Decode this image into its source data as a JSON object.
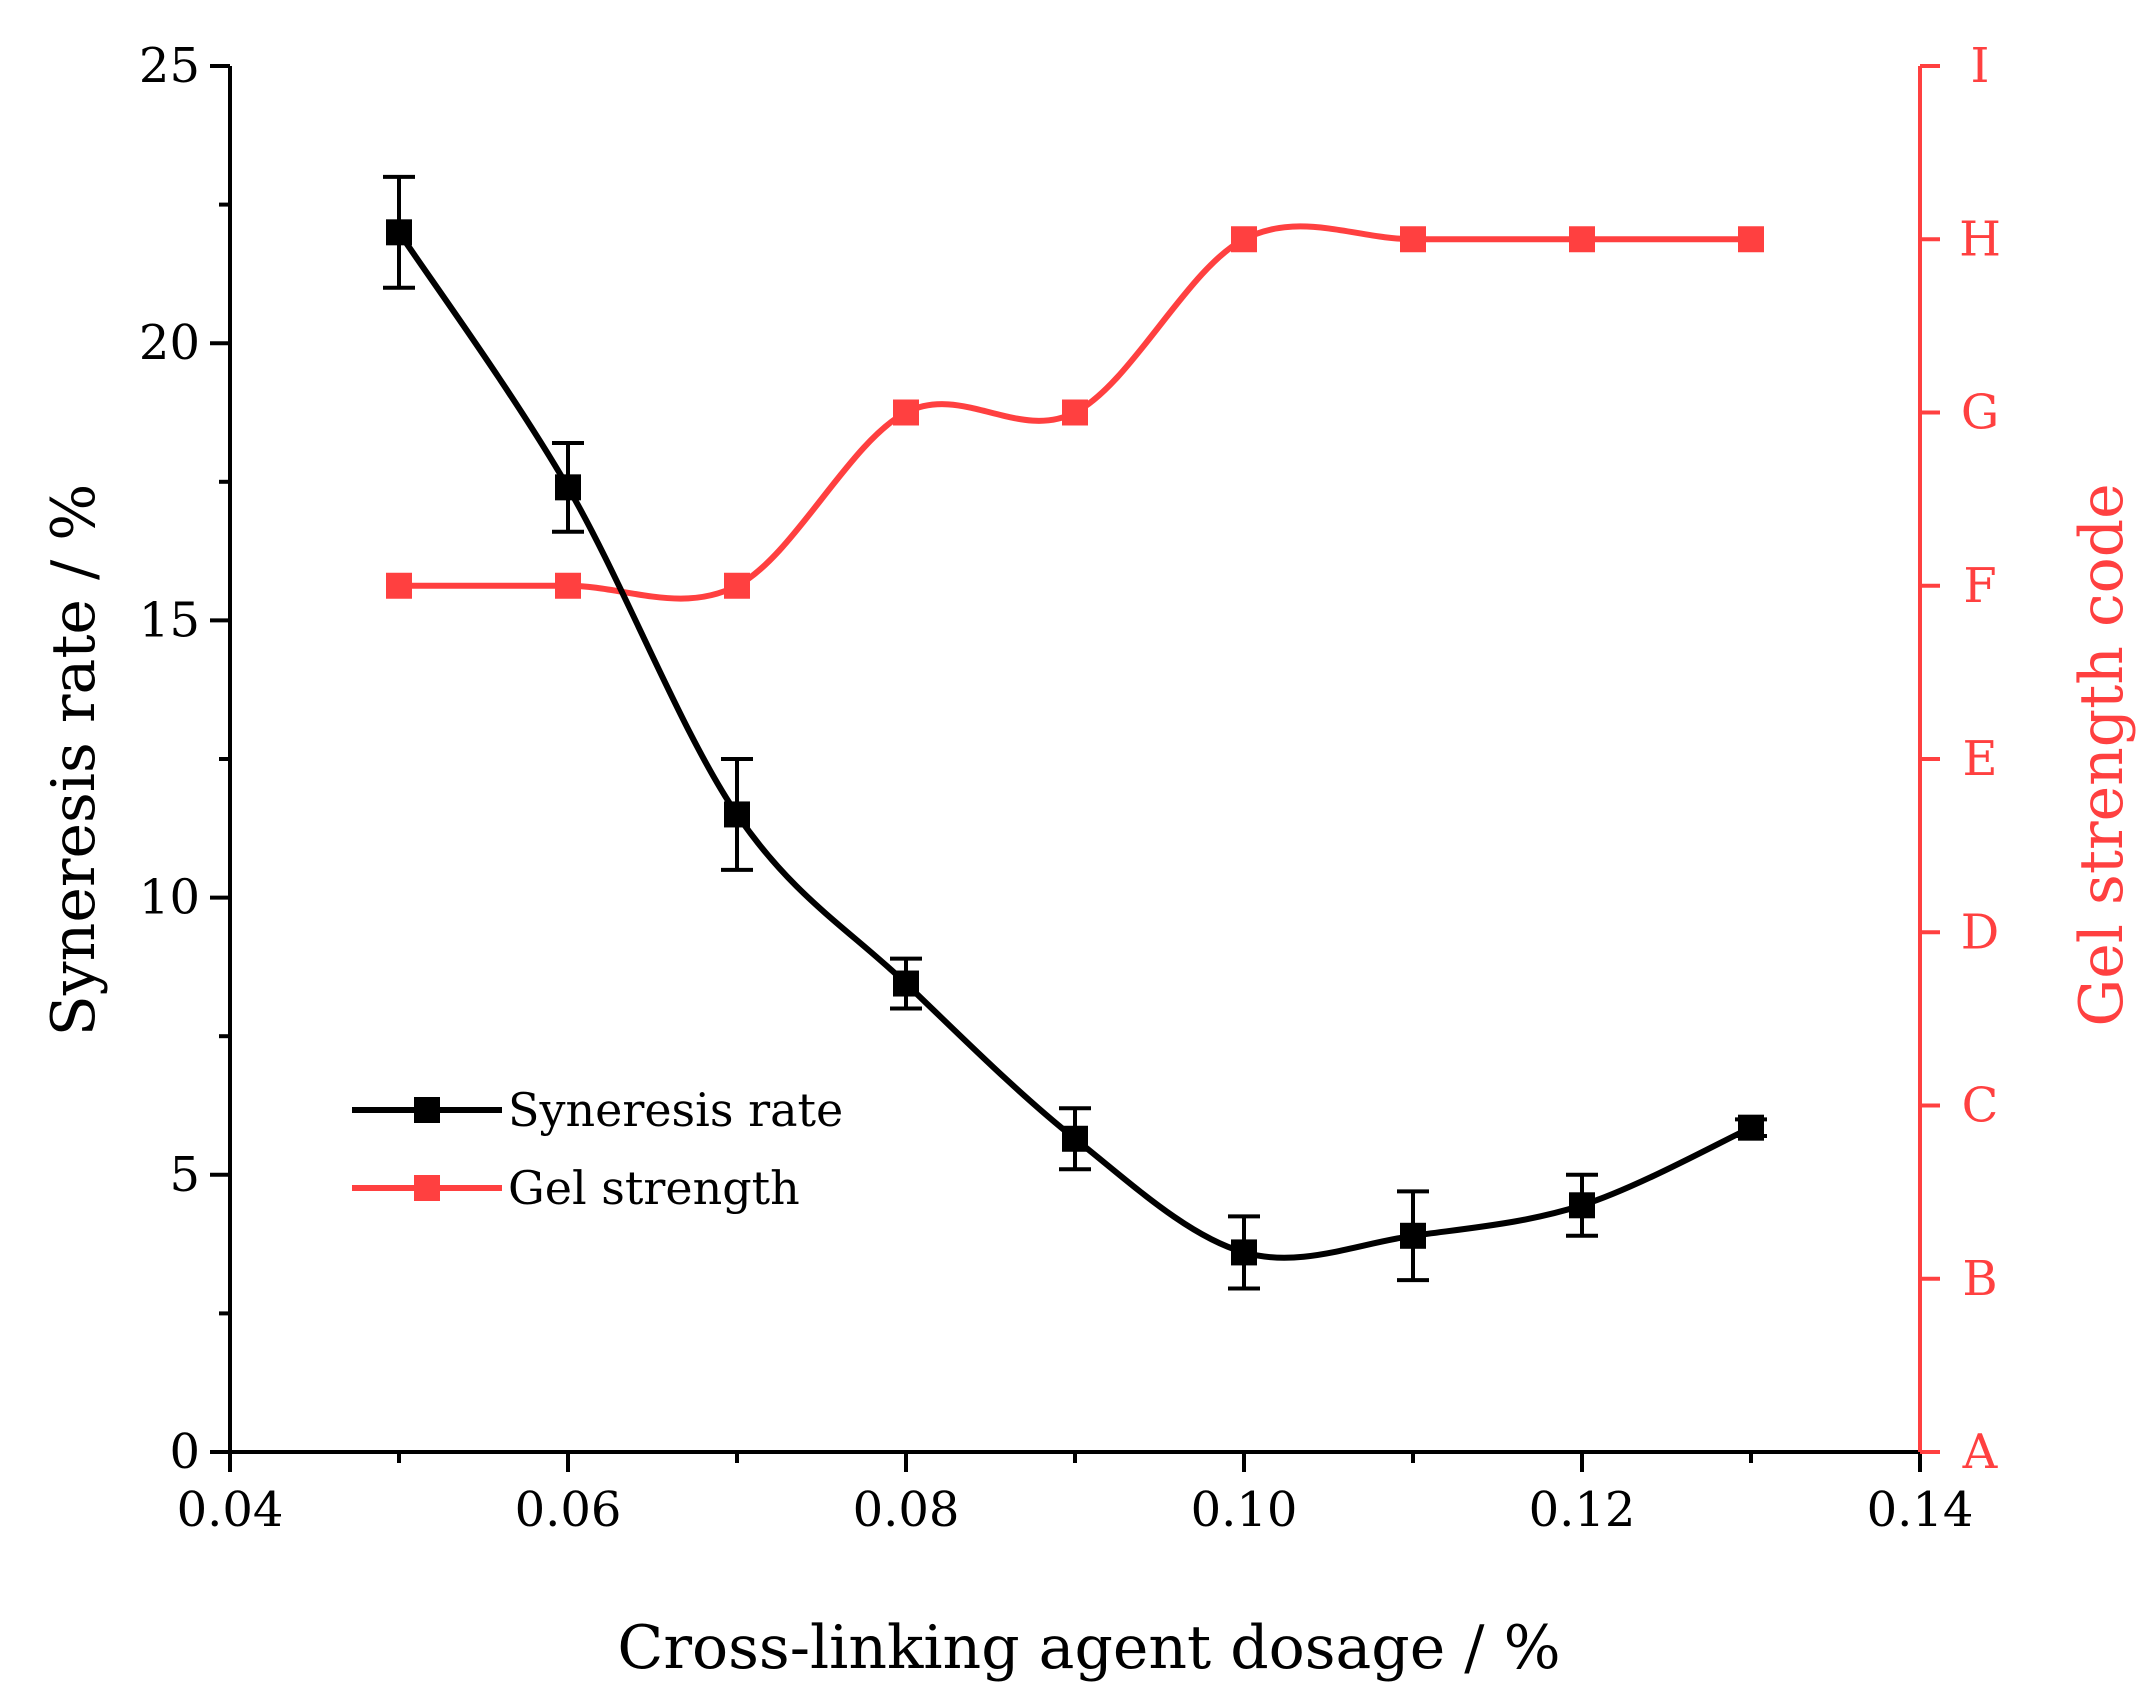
{
  "chart_data": {
    "type": "line",
    "x": [
      0.05,
      0.06,
      0.07,
      0.08,
      0.09,
      0.1,
      0.11,
      0.12,
      0.13
    ],
    "xlabel": "Cross-linking agent dosage / %",
    "xlim": [
      0.04,
      0.14
    ],
    "xticks": [
      0.04,
      0.06,
      0.08,
      0.1,
      0.12,
      0.14
    ],
    "xtick_labels": [
      "0.04",
      "0.06",
      "0.08",
      "0.10",
      "0.12",
      "0.14"
    ],
    "left_axis": {
      "label": "Syneresis rate / %",
      "ylim": [
        0,
        25
      ],
      "ticks": [
        0,
        5,
        10,
        15,
        20,
        25
      ],
      "tick_labels": [
        "0",
        "5",
        "10",
        "15",
        "20",
        "25"
      ]
    },
    "right_axis": {
      "label": "Gel strength code",
      "ylim": [
        0,
        8
      ],
      "ticks": [
        0,
        1,
        2,
        3,
        4,
        5,
        6,
        7,
        8
      ],
      "tick_labels": [
        "A",
        "B",
        "C",
        "D",
        "E",
        "F",
        "G",
        "H",
        "I"
      ]
    },
    "series": [
      {
        "name": "Syneresis rate",
        "axis": "left",
        "color": "#000000",
        "values": [
          22.0,
          17.4,
          11.5,
          8.45,
          5.65,
          3.6,
          3.9,
          4.45,
          5.85
        ],
        "errors": [
          1.0,
          0.8,
          1.0,
          0.45,
          0.55,
          0.65,
          0.8,
          0.55,
          0.15
        ]
      },
      {
        "name": "Gel strength",
        "axis": "right",
        "color": "#ff4040",
        "values": [
          5,
          5,
          5,
          6,
          6,
          7,
          7,
          7,
          7
        ],
        "value_labels": [
          "F",
          "F",
          "F",
          "G",
          "G",
          "H",
          "H",
          "H",
          "H"
        ]
      }
    ],
    "legend": {
      "position": "lower-left",
      "entries": [
        "Syneresis rate",
        "Gel strength"
      ]
    }
  }
}
